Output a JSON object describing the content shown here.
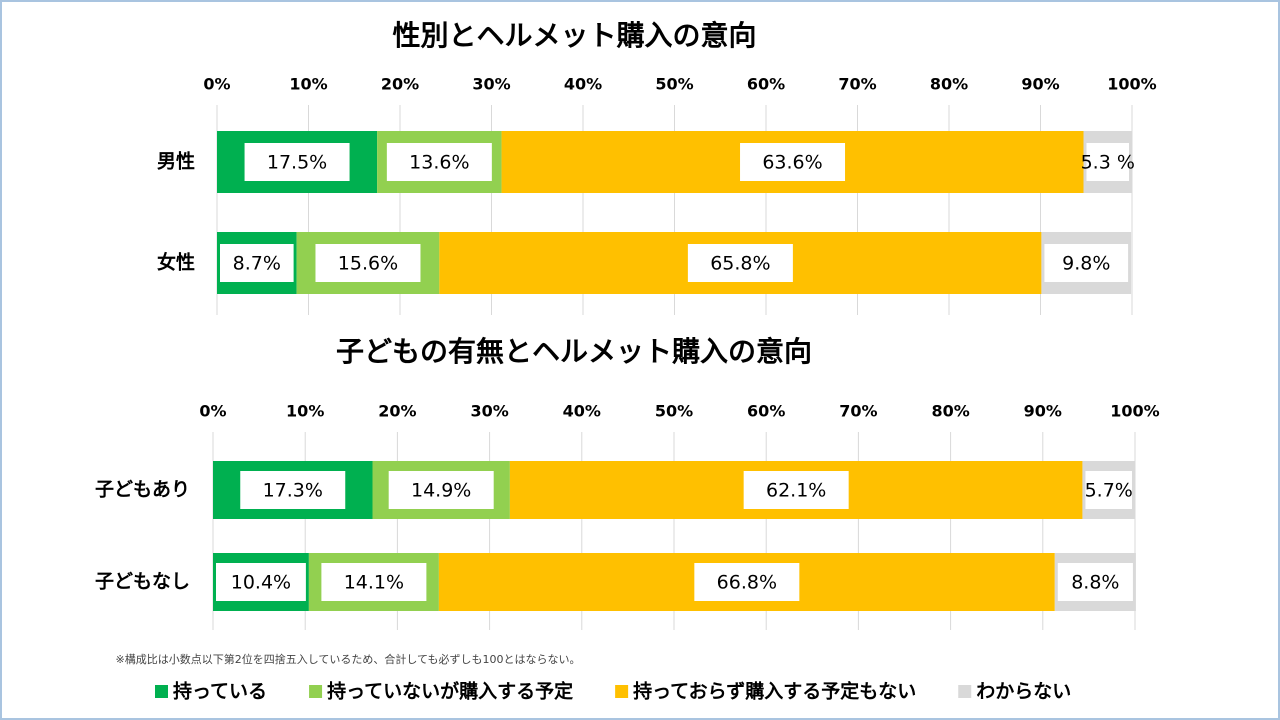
{
  "chart_data": [
    {
      "type": "stacked-bar",
      "title": "性別とヘルメット購入の意向",
      "categories": [
        "男性",
        "女性"
      ],
      "series": [
        {
          "name": "持っている",
          "color": "#00b050",
          "values": [
            17.5,
            8.7
          ],
          "value_labels": [
            "17.5%",
            "8.7%"
          ]
        },
        {
          "name": "持っていないが購入する予定",
          "color": "#92d050",
          "values": [
            13.6,
            15.6
          ],
          "value_labels": [
            "13.6%",
            "15.6%"
          ]
        },
        {
          "name": "持っておらず購入する予定もない",
          "color": "#ffc000",
          "values": [
            63.6,
            65.8
          ],
          "value_labels": [
            "63.6%",
            "65.8%"
          ]
        },
        {
          "name": "わからない",
          "color": "#d9d9d9",
          "values": [
            5.3,
            9.8
          ],
          "value_labels": [
            "5.3 %",
            "9.8%"
          ]
        }
      ],
      "xlim": [
        0,
        100
      ],
      "xticks": [
        {
          "value": 0,
          "label": "0%"
        },
        {
          "value": 10,
          "label": "10%"
        },
        {
          "value": 20,
          "label": "20%"
        },
        {
          "value": 30,
          "label": "30%"
        },
        {
          "value": 40,
          "label": "40%"
        },
        {
          "value": 50,
          "label": "50%"
        },
        {
          "value": 60,
          "label": "60%"
        },
        {
          "value": 70,
          "label": "70%"
        },
        {
          "value": 80,
          "label": "80%"
        },
        {
          "value": 90,
          "label": "90%"
        },
        {
          "value": 100,
          "label": "100%"
        }
      ],
      "grid": true
    },
    {
      "type": "stacked-bar",
      "title": "子どもの有無とヘルメット購入の意向",
      "categories": [
        "子どもあり",
        "子どもなし"
      ],
      "series": [
        {
          "color": "#00b050",
          "values": [
            17.3,
            10.4
          ],
          "value_labels": [
            "17.3%",
            "10.4%"
          ]
        },
        {
          "color": "#92d050",
          "values": [
            14.9,
            14.1
          ],
          "value_labels": [
            "14.9%",
            "14.1%"
          ]
        },
        {
          "color": "#ffc000",
          "values": [
            62.1,
            66.8
          ],
          "value_labels": [
            "62.1%",
            "66.8%"
          ]
        },
        {
          "color": "#d9d9d9",
          "values": [
            5.7,
            8.8
          ],
          "value_labels": [
            "5.7%",
            "8.8%"
          ]
        }
      ],
      "xlim": [
        0,
        100
      ],
      "xticks": [
        {
          "value": 0,
          "label": "0%"
        },
        {
          "value": 10,
          "label": "10%"
        },
        {
          "value": 20,
          "label": "20%"
        },
        {
          "value": 30,
          "label": "30%"
        },
        {
          "value": 40,
          "label": "40%"
        },
        {
          "value": 50,
          "label": "50%"
        },
        {
          "value": 60,
          "label": "60%"
        },
        {
          "value": 70,
          "label": "70%"
        },
        {
          "value": 80,
          "label": "80%"
        },
        {
          "value": 90,
          "label": "90%"
        },
        {
          "value": 100,
          "label": "100%"
        }
      ],
      "grid": true
    }
  ],
  "footnote": "※構成比は小数点以下第2位を四捨五入しているため、合計しても必ずしも100とはならない。"
}
